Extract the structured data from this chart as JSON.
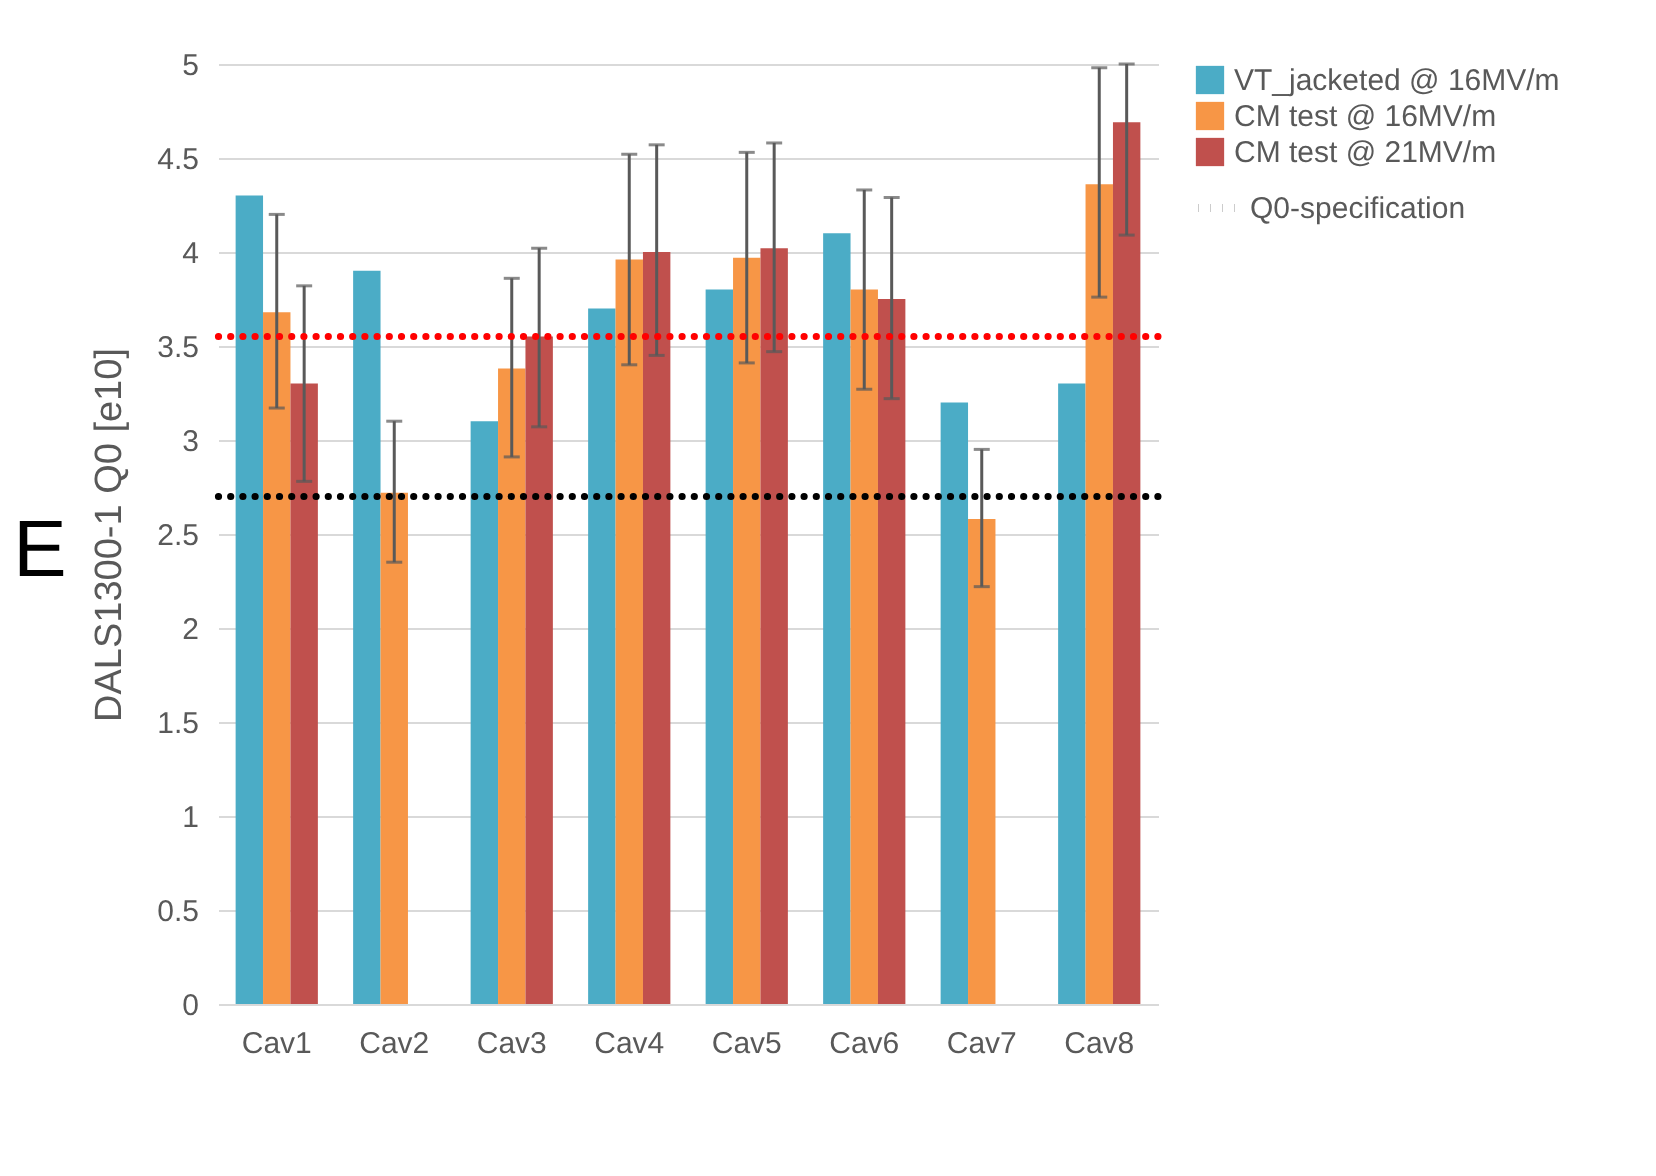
{
  "chart_data": {
    "type": "bar",
    "ylabel": "DALS1300-1 Q0 [e10]",
    "annotations": [
      "E"
    ],
    "categories": [
      "Cav1",
      "Cav2",
      "Cav3",
      "Cav4",
      "Cav5",
      "Cav6",
      "Cav7",
      "Cav8"
    ],
    "series": [
      {
        "name": "VT_jacketed @ 16MV/m",
        "color": "#4bacc6",
        "values": [
          4.3,
          3.9,
          3.1,
          3.7,
          3.8,
          4.1,
          3.2,
          3.3
        ]
      },
      {
        "name": "CM test @ 16MV/m",
        "color": "#f79646",
        "values": [
          3.68,
          2.72,
          3.38,
          3.96,
          3.97,
          3.8,
          2.58,
          4.36
        ],
        "errors": [
          [
            3.17,
            4.2
          ],
          [
            2.35,
            3.1
          ],
          [
            2.91,
            3.86
          ],
          [
            3.4,
            4.52
          ],
          [
            3.41,
            4.53
          ],
          [
            3.27,
            4.33
          ],
          [
            2.22,
            2.95
          ],
          [
            3.76,
            4.98
          ]
        ]
      },
      {
        "name": "CM test @ 21MV/m",
        "color": "#c0504d",
        "values": [
          3.3,
          null,
          3.55,
          4.0,
          4.02,
          3.75,
          null,
          4.69
        ],
        "errors": [
          [
            2.78,
            3.82
          ],
          null,
          [
            3.07,
            4.02
          ],
          [
            3.45,
            4.57
          ],
          [
            3.47,
            4.58
          ],
          [
            3.22,
            4.29
          ],
          null,
          [
            4.09,
            5
          ]
        ]
      }
    ],
    "ylim": [
      0,
      5
    ],
    "yticks": [
      0,
      0.5,
      1,
      1.5,
      2,
      2.5,
      3,
      3.5,
      4,
      4.5,
      5
    ],
    "grid": "y",
    "legend": "right",
    "ref_lines": [
      {
        "axis": "y",
        "value": 3.55,
        "label": null,
        "color": "#ff0000",
        "line_style": "dotted"
      },
      {
        "axis": "y",
        "value": 2.7,
        "label": "Q0-specification",
        "color": "#000000",
        "line_style": "dotted"
      }
    ]
  }
}
